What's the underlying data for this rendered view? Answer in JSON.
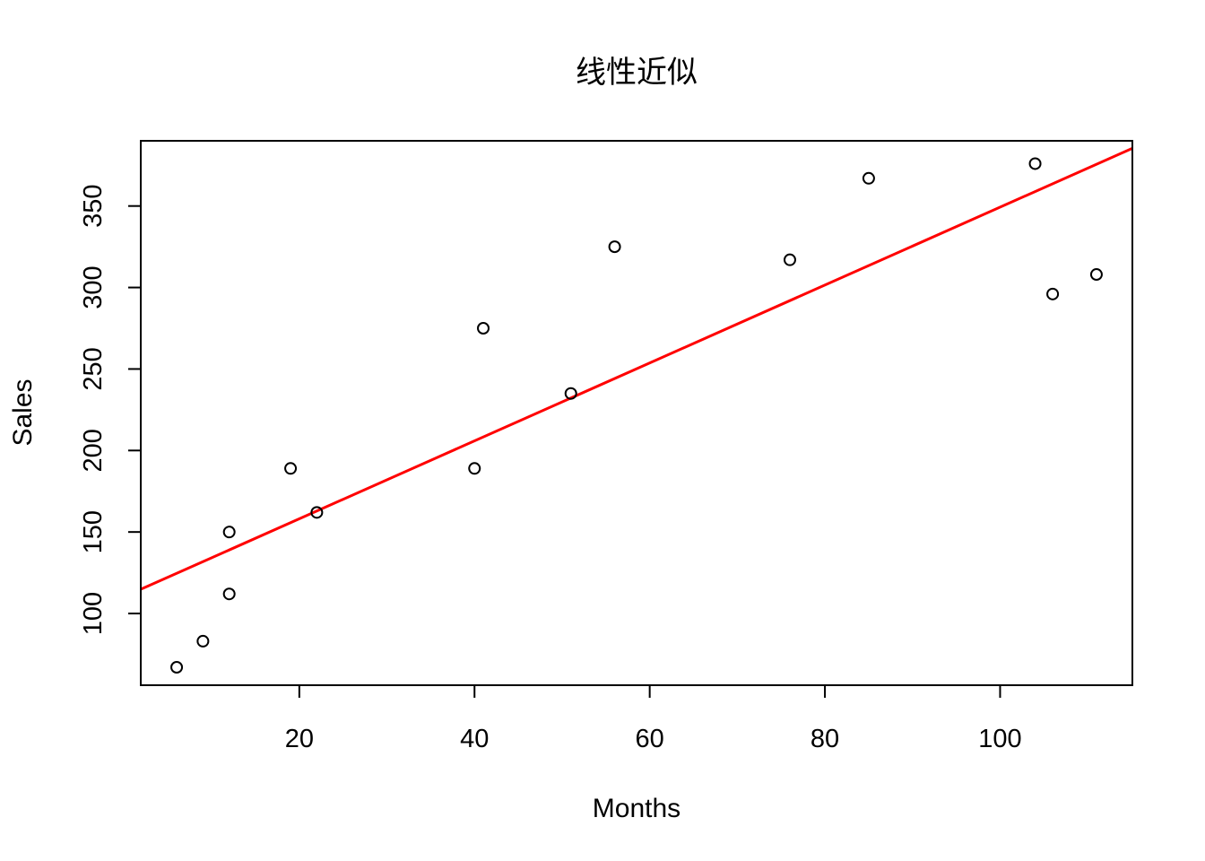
{
  "chart_data": {
    "type": "scatter",
    "title": "线性近似",
    "xlabel": "Months",
    "ylabel": "Sales",
    "xlim": [
      1.9,
      115.1
    ],
    "ylim": [
      56,
      390
    ],
    "x_ticks": [
      20,
      40,
      60,
      80,
      100
    ],
    "y_ticks": [
      100,
      150,
      200,
      250,
      300,
      350
    ],
    "grid": false,
    "points": [
      {
        "x": 6,
        "y": 67
      },
      {
        "x": 9,
        "y": 83
      },
      {
        "x": 12,
        "y": 112
      },
      {
        "x": 12,
        "y": 150
      },
      {
        "x": 19,
        "y": 189
      },
      {
        "x": 22,
        "y": 162
      },
      {
        "x": 40,
        "y": 189
      },
      {
        "x": 41,
        "y": 275
      },
      {
        "x": 51,
        "y": 235
      },
      {
        "x": 56,
        "y": 325
      },
      {
        "x": 76,
        "y": 317
      },
      {
        "x": 85,
        "y": 367
      },
      {
        "x": 104,
        "y": 376
      },
      {
        "x": 106,
        "y": 296
      },
      {
        "x": 111,
        "y": 308
      }
    ],
    "fit_line": {
      "name": "linear fit",
      "color": "#ff0000",
      "intercept": 110.3,
      "slope": 2.39
    }
  }
}
